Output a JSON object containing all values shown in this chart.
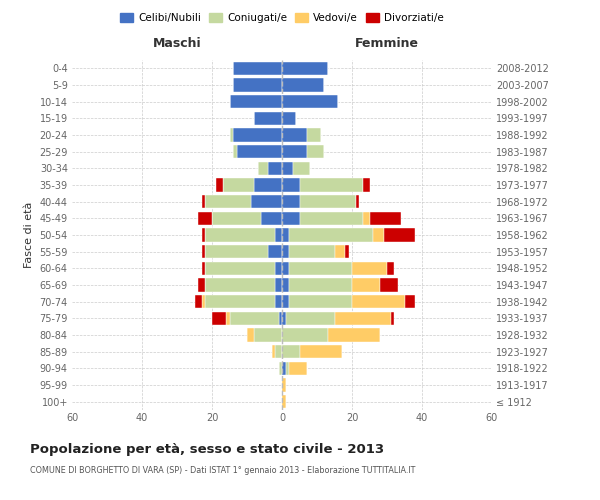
{
  "age_groups": [
    "100+",
    "95-99",
    "90-94",
    "85-89",
    "80-84",
    "75-79",
    "70-74",
    "65-69",
    "60-64",
    "55-59",
    "50-54",
    "45-49",
    "40-44",
    "35-39",
    "30-34",
    "25-29",
    "20-24",
    "15-19",
    "10-14",
    "5-9",
    "0-4"
  ],
  "birth_years": [
    "≤ 1912",
    "1913-1917",
    "1918-1922",
    "1923-1927",
    "1928-1932",
    "1933-1937",
    "1938-1942",
    "1943-1947",
    "1948-1952",
    "1953-1957",
    "1958-1962",
    "1963-1967",
    "1968-1972",
    "1973-1977",
    "1978-1982",
    "1983-1987",
    "1988-1992",
    "1993-1997",
    "1998-2002",
    "2003-2007",
    "2008-2012"
  ],
  "colors": {
    "celibi": "#4472C4",
    "coniugati": "#C5D9A0",
    "vedovi": "#FFCC66",
    "divorziati": "#CC0000"
  },
  "maschi": {
    "celibi": [
      0,
      0,
      0,
      0,
      0,
      1,
      2,
      2,
      2,
      4,
      2,
      6,
      9,
      8,
      4,
      13,
      14,
      8,
      15,
      14,
      14
    ],
    "coniugati": [
      0,
      0,
      1,
      2,
      8,
      14,
      20,
      20,
      20,
      18,
      20,
      14,
      13,
      9,
      3,
      1,
      1,
      0,
      0,
      0,
      0
    ],
    "vedovi": [
      0,
      0,
      0,
      1,
      2,
      1,
      1,
      0,
      0,
      0,
      0,
      0,
      0,
      0,
      0,
      0,
      0,
      0,
      0,
      0,
      0
    ],
    "divorziati": [
      0,
      0,
      0,
      0,
      0,
      4,
      2,
      2,
      1,
      1,
      1,
      4,
      1,
      2,
      0,
      0,
      0,
      0,
      0,
      0,
      0
    ]
  },
  "femmine": {
    "celibi": [
      0,
      0,
      1,
      0,
      0,
      1,
      2,
      2,
      2,
      2,
      2,
      5,
      5,
      5,
      3,
      7,
      7,
      4,
      16,
      12,
      13
    ],
    "coniugati": [
      0,
      0,
      1,
      5,
      13,
      14,
      18,
      18,
      18,
      13,
      24,
      18,
      16,
      18,
      5,
      5,
      4,
      0,
      0,
      0,
      0
    ],
    "vedovi": [
      1,
      1,
      5,
      12,
      15,
      16,
      15,
      8,
      10,
      3,
      3,
      2,
      0,
      0,
      0,
      0,
      0,
      0,
      0,
      0,
      0
    ],
    "divorziati": [
      0,
      0,
      0,
      0,
      0,
      1,
      3,
      5,
      2,
      1,
      9,
      9,
      1,
      2,
      0,
      0,
      0,
      0,
      0,
      0,
      0
    ]
  },
  "xlim": 60,
  "title": "Popolazione per età, sesso e stato civile - 2013",
  "subtitle": "COMUNE DI BORGHETTO DI VARA (SP) - Dati ISTAT 1° gennaio 2013 - Elaborazione TUTTITALIA.IT",
  "ylabel_left": "Fasce di età",
  "label_maschi": "Maschi",
  "label_femmine": "Femmine",
  "legend_labels": [
    "Celibi/Nubili",
    "Coniugati/e",
    "Vedovi/e",
    "Divorziati/e"
  ],
  "bg_color": "#FFFFFF",
  "grid_color": "#CCCCCC",
  "tick_color": "#666666"
}
